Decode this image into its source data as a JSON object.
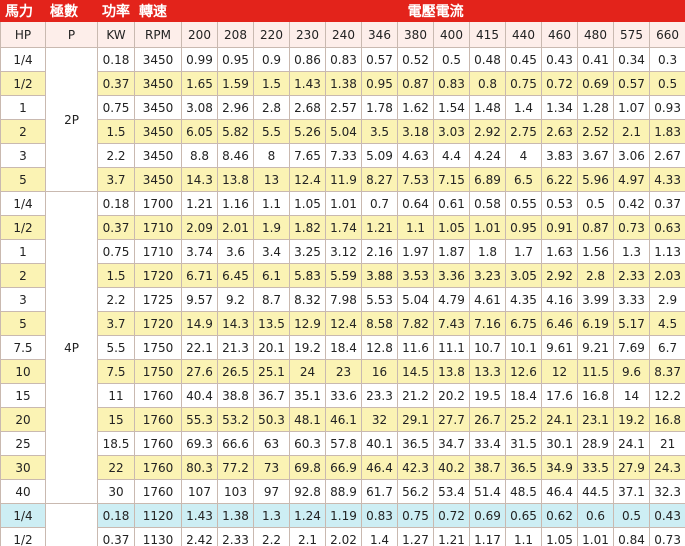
{
  "header": {
    "group_labels": [
      "馬力",
      "極數",
      "功率",
      "轉速",
      "電壓電流"
    ],
    "columns": [
      "HP",
      "P",
      "KW",
      "RPM",
      200,
      208,
      220,
      230,
      240,
      346,
      380,
      400,
      415,
      440,
      460,
      480,
      575,
      660
    ]
  },
  "groups": [
    {
      "pole": "2P",
      "rows": [
        [
          "1/4",
          0.18,
          3450,
          0.99,
          0.95,
          0.9,
          0.86,
          0.83,
          0.57,
          0.52,
          0.5,
          0.48,
          0.45,
          0.43,
          0.41,
          0.34,
          0.3
        ],
        [
          "1/2",
          0.37,
          3450,
          1.65,
          1.59,
          1.5,
          1.43,
          1.38,
          0.95,
          0.87,
          0.83,
          0.8,
          0.75,
          0.72,
          0.69,
          0.57,
          0.5
        ],
        [
          "1",
          0.75,
          3450,
          3.08,
          2.96,
          2.8,
          2.68,
          2.57,
          1.78,
          1.62,
          1.54,
          1.48,
          1.4,
          1.34,
          1.28,
          1.07,
          0.93
        ],
        [
          "2",
          1.5,
          3450,
          6.05,
          5.82,
          5.5,
          5.26,
          5.04,
          3.5,
          3.18,
          3.03,
          2.92,
          2.75,
          2.63,
          2.52,
          2.1,
          1.83
        ],
        [
          "3",
          2.2,
          3450,
          8.8,
          8.46,
          8,
          7.65,
          7.33,
          5.09,
          4.63,
          4.4,
          4.24,
          4,
          3.83,
          3.67,
          3.06,
          2.67
        ],
        [
          "5",
          3.7,
          3450,
          14.3,
          13.8,
          13,
          12.4,
          11.9,
          8.27,
          7.53,
          7.15,
          6.89,
          6.5,
          6.22,
          5.96,
          4.97,
          4.33
        ]
      ]
    },
    {
      "pole": "4P",
      "rows": [
        [
          "1/4",
          0.18,
          1700,
          1.21,
          1.16,
          1.1,
          1.05,
          1.01,
          0.7,
          0.64,
          0.61,
          0.58,
          0.55,
          0.53,
          0.5,
          0.42,
          0.37
        ],
        [
          "1/2",
          0.37,
          1710,
          2.09,
          2.01,
          1.9,
          1.82,
          1.74,
          1.21,
          1.1,
          1.05,
          1.01,
          0.95,
          0.91,
          0.87,
          0.73,
          0.63
        ],
        [
          "1",
          0.75,
          1710,
          3.74,
          3.6,
          3.4,
          3.25,
          3.12,
          2.16,
          1.97,
          1.87,
          1.8,
          1.7,
          1.63,
          1.56,
          1.3,
          1.13
        ],
        [
          "2",
          1.5,
          1720,
          6.71,
          6.45,
          6.1,
          5.83,
          5.59,
          3.88,
          3.53,
          3.36,
          3.23,
          3.05,
          2.92,
          2.8,
          2.33,
          2.03
        ],
        [
          "3",
          2.2,
          1725,
          9.57,
          9.2,
          8.7,
          8.32,
          7.98,
          5.53,
          5.04,
          4.79,
          4.61,
          4.35,
          4.16,
          3.99,
          3.33,
          2.9
        ],
        [
          "5",
          3.7,
          1720,
          14.9,
          14.3,
          13.5,
          12.9,
          12.4,
          8.58,
          7.82,
          7.43,
          7.16,
          6.75,
          6.46,
          6.19,
          5.17,
          4.5
        ],
        [
          "7.5",
          5.5,
          1750,
          22.1,
          21.3,
          20.1,
          19.2,
          18.4,
          12.8,
          11.6,
          11.1,
          10.7,
          10.1,
          9.61,
          9.21,
          7.69,
          6.7
        ],
        [
          "10",
          7.5,
          1750,
          27.6,
          26.5,
          25.1,
          24,
          23,
          16,
          14.5,
          13.8,
          13.3,
          12.6,
          12,
          11.5,
          9.6,
          8.37
        ],
        [
          "15",
          11,
          1760,
          40.4,
          38.8,
          36.7,
          35.1,
          33.6,
          23.3,
          21.2,
          20.2,
          19.5,
          18.4,
          17.6,
          16.8,
          14,
          12.2
        ],
        [
          "20",
          15,
          1760,
          55.3,
          53.2,
          50.3,
          48.1,
          46.1,
          32,
          29.1,
          27.7,
          26.7,
          25.2,
          24.1,
          23.1,
          19.2,
          16.8
        ],
        [
          "25",
          18.5,
          1760,
          69.3,
          66.6,
          63,
          60.3,
          57.8,
          40.1,
          36.5,
          34.7,
          33.4,
          31.5,
          30.1,
          28.9,
          24.1,
          21
        ],
        [
          "30",
          22,
          1760,
          80.3,
          77.2,
          73,
          69.8,
          66.9,
          46.4,
          42.3,
          40.2,
          38.7,
          36.5,
          34.9,
          33.5,
          27.9,
          24.3
        ],
        [
          "40",
          30,
          1760,
          107,
          103,
          97,
          92.8,
          88.9,
          61.7,
          56.2,
          53.4,
          51.4,
          48.5,
          46.4,
          44.5,
          37.1,
          32.3
        ]
      ]
    },
    {
      "rows": [
        [
          "1/4",
          0.18,
          1120,
          1.43,
          1.38,
          1.3,
          1.24,
          1.19,
          0.83,
          0.75,
          0.72,
          0.69,
          0.65,
          0.62,
          0.6,
          0.5,
          0.43
        ],
        [
          "1/2",
          0.37,
          1130,
          2.42,
          2.33,
          2.2,
          2.1,
          2.02,
          1.4,
          1.27,
          1.21,
          1.17,
          1.1,
          1.05,
          1.01,
          0.84,
          0.73
        ]
      ]
    }
  ]
}
